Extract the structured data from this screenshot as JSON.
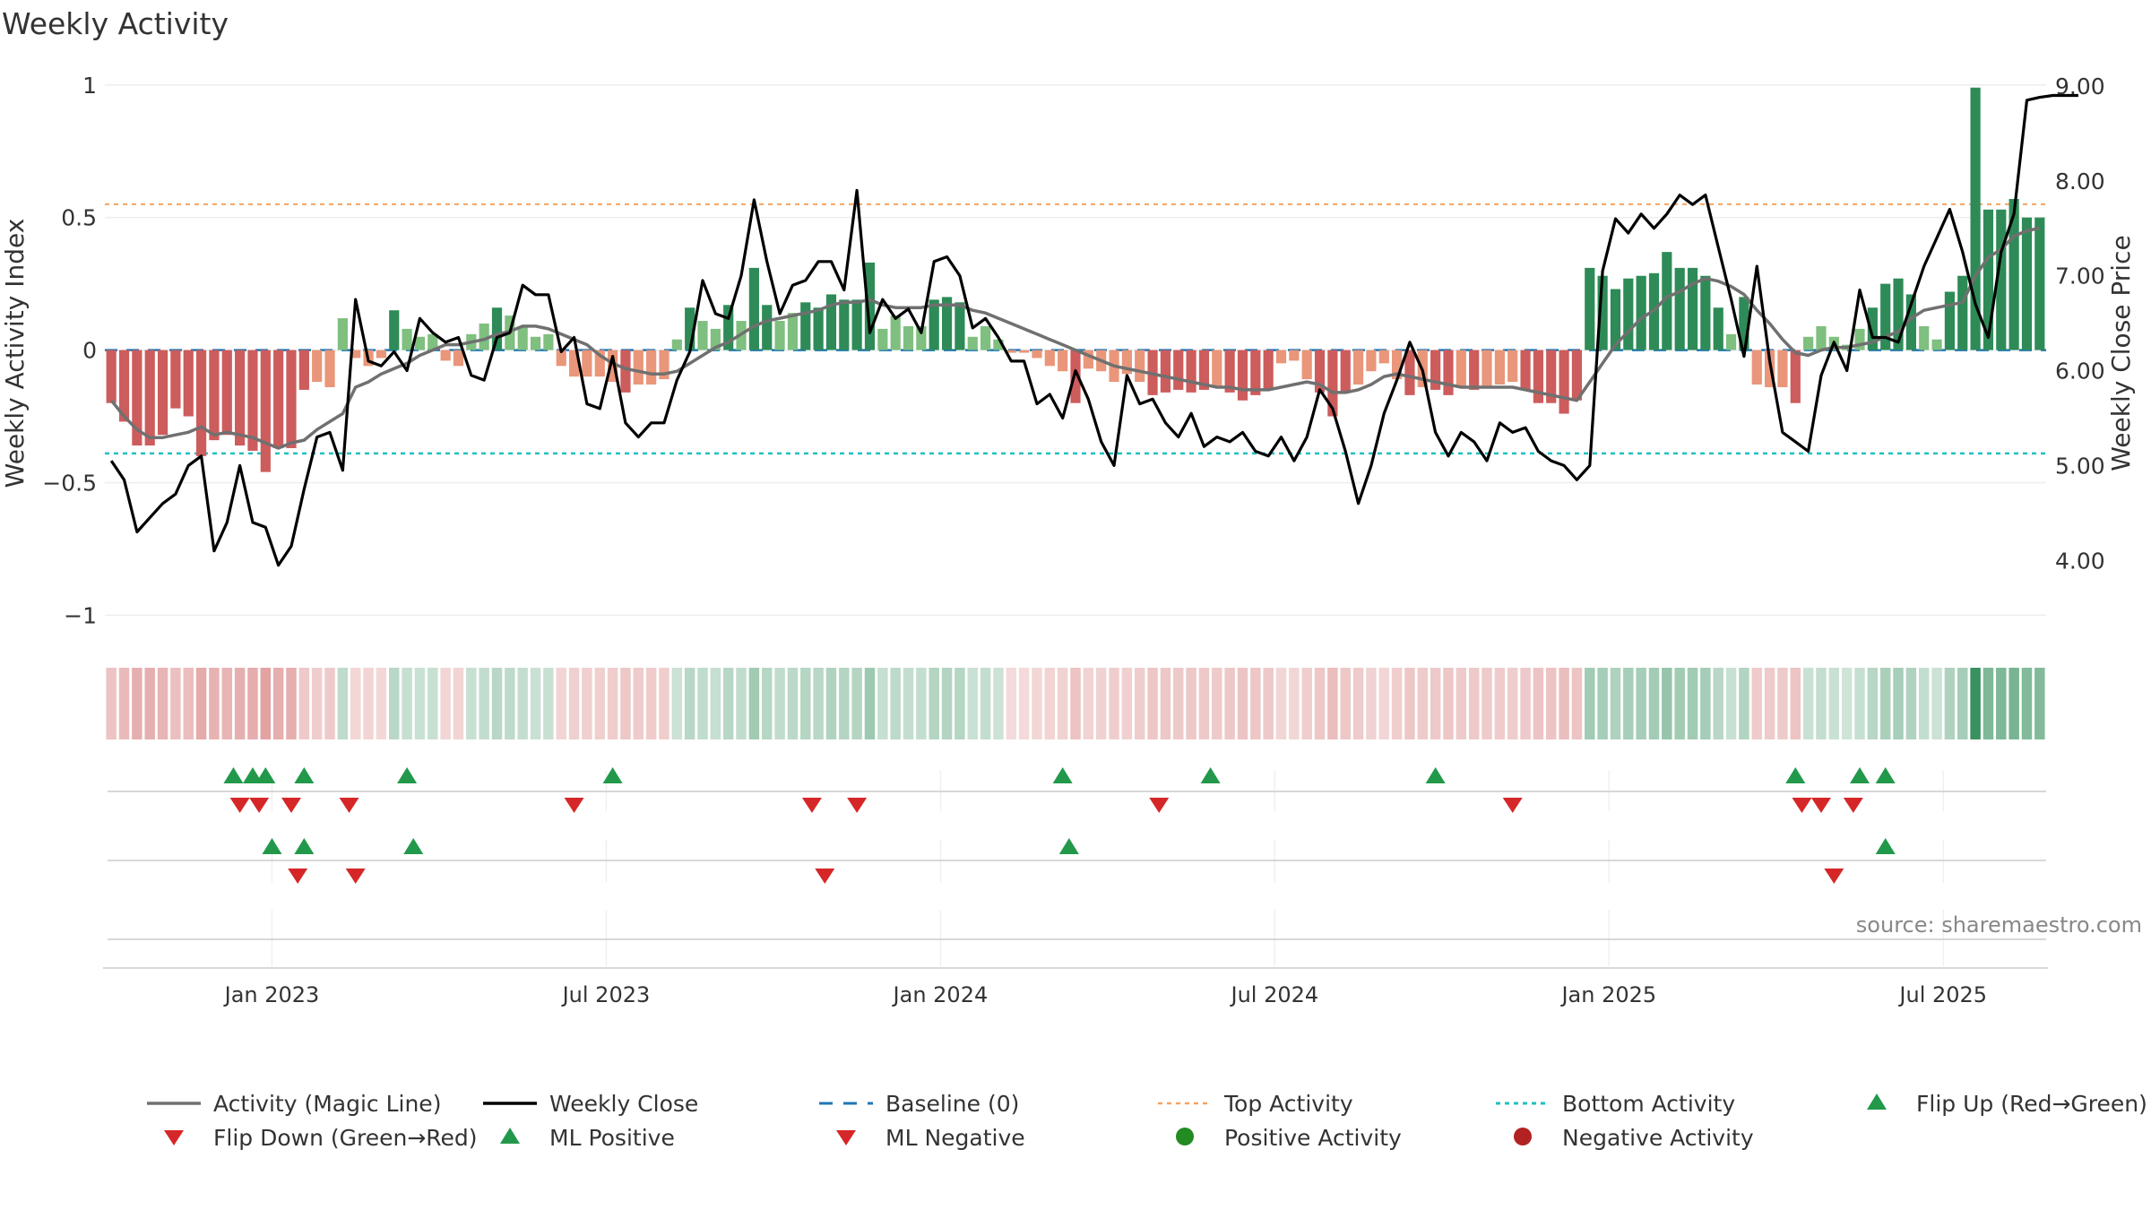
{
  "chart_data": {
    "type": "bar",
    "title": "Weekly Activity",
    "ylabel": "Weekly Activity Index",
    "y2label": "Weekly Close Price",
    "ylim": [
      -1.08,
      1.05
    ],
    "y2lim": [
      3.2,
      9.15
    ],
    "yticks": [
      {
        "value": 1,
        "label": "1"
      },
      {
        "value": 0.5,
        "label": "0.5"
      },
      {
        "value": 0,
        "label": "0"
      },
      {
        "value": -0.5,
        "label": "−0.5"
      },
      {
        "value": -1,
        "label": "−1"
      }
    ],
    "y2ticks": [
      {
        "value": 9,
        "label": "9.00"
      },
      {
        "value": 8,
        "label": "8.00"
      },
      {
        "value": 7,
        "label": "7.00"
      },
      {
        "value": 6,
        "label": "6.00"
      },
      {
        "value": 5,
        "label": "5.00"
      },
      {
        "value": 4,
        "label": "4.00"
      }
    ],
    "xticks": [
      {
        "week": 12.5,
        "label": "Jan 2023"
      },
      {
        "week": 38.5,
        "label": "Jul 2023"
      },
      {
        "week": 64.5,
        "label": "Jan 2024"
      },
      {
        "week": 90.5,
        "label": "Jul 2024"
      },
      {
        "week": 116.5,
        "label": "Jan 2025"
      },
      {
        "week": 142.5,
        "label": "Jul 2025"
      }
    ],
    "top_activity": 0.55,
    "bottom_activity": -0.39,
    "colors": {
      "pos_strong": "#2e8b57",
      "pos_light": "#7fbf7f",
      "neg_strong": "#cd5c5c",
      "neg_light": "#e9967a",
      "magic_line": "#707070",
      "close_line": "#000000",
      "baseline": "#1f77b4",
      "top_line": "#f4a460",
      "bottom_line": "#20c0c0",
      "flip_up": "#22994a",
      "flip_down": "#d62728",
      "positive_dot": "#228b22",
      "negative_dot": "#b22222"
    },
    "activity": [
      -0.2,
      -0.27,
      -0.36,
      -0.36,
      -0.32,
      -0.22,
      -0.25,
      -0.4,
      -0.34,
      -0.32,
      -0.36,
      -0.38,
      -0.46,
      -0.37,
      -0.37,
      -0.15,
      -0.12,
      -0.14,
      0.12,
      -0.03,
      -0.06,
      -0.03,
      0.15,
      0.08,
      0.05,
      0.06,
      -0.04,
      -0.06,
      0.06,
      0.1,
      0.16,
      0.13,
      0.09,
      0.05,
      0.06,
      -0.06,
      -0.1,
      -0.1,
      -0.1,
      -0.12,
      -0.16,
      -0.13,
      -0.13,
      -0.11,
      0.04,
      0.16,
      0.11,
      0.08,
      0.17,
      0.11,
      0.31,
      0.17,
      0.11,
      0.14,
      0.18,
      0.16,
      0.21,
      0.19,
      0.19,
      0.33,
      0.08,
      0.13,
      0.09,
      0.09,
      0.19,
      0.2,
      0.18,
      0.05,
      0.09,
      0.04,
      -0.01,
      -0.01,
      -0.03,
      -0.06,
      -0.08,
      -0.2,
      -0.07,
      -0.08,
      -0.12,
      -0.09,
      -0.12,
      -0.17,
      -0.16,
      -0.15,
      -0.16,
      -0.15,
      -0.14,
      -0.16,
      -0.19,
      -0.17,
      -0.15,
      -0.05,
      -0.04,
      -0.11,
      -0.16,
      -0.25,
      -0.16,
      -0.13,
      -0.08,
      -0.05,
      -0.11,
      -0.17,
      -0.14,
      -0.15,
      -0.17,
      -0.14,
      -0.15,
      -0.14,
      -0.13,
      -0.12,
      -0.15,
      -0.2,
      -0.2,
      -0.24,
      -0.19,
      0.31,
      0.28,
      0.23,
      0.27,
      0.28,
      0.29,
      0.37,
      0.31,
      0.31,
      0.28,
      0.16,
      0.06,
      0.2,
      -0.13,
      -0.14,
      -0.14,
      -0.2,
      0.05,
      0.09,
      0.05,
      0.02,
      0.08,
      0.16,
      0.25,
      0.27,
      0.21,
      0.09,
      0.04,
      0.22,
      0.28,
      0.99,
      0.53,
      0.53,
      0.57,
      0.5,
      0.5
    ],
    "magic_line": [
      -0.19,
      -0.25,
      -0.3,
      -0.33,
      -0.33,
      -0.32,
      -0.31,
      -0.29,
      -0.32,
      -0.31,
      -0.32,
      -0.33,
      -0.35,
      -0.37,
      -0.35,
      -0.34,
      -0.3,
      -0.27,
      -0.24,
      -0.14,
      -0.12,
      -0.09,
      -0.07,
      -0.05,
      -0.02,
      0.0,
      0.02,
      0.02,
      0.03,
      0.04,
      0.06,
      0.07,
      0.09,
      0.09,
      0.08,
      0.06,
      0.04,
      0.02,
      -0.02,
      -0.05,
      -0.07,
      -0.08,
      -0.09,
      -0.09,
      -0.08,
      -0.05,
      -0.02,
      0.01,
      0.03,
      0.06,
      0.09,
      0.11,
      0.12,
      0.13,
      0.14,
      0.15,
      0.17,
      0.18,
      0.18,
      0.19,
      0.17,
      0.16,
      0.16,
      0.16,
      0.17,
      0.17,
      0.17,
      0.15,
      0.14,
      0.12,
      0.1,
      0.08,
      0.06,
      0.04,
      0.02,
      0.0,
      -0.02,
      -0.04,
      -0.06,
      -0.07,
      -0.08,
      -0.09,
      -0.1,
      -0.11,
      -0.12,
      -0.13,
      -0.14,
      -0.14,
      -0.15,
      -0.15,
      -0.15,
      -0.14,
      -0.13,
      -0.12,
      -0.13,
      -0.16,
      -0.16,
      -0.15,
      -0.13,
      -0.1,
      -0.09,
      -0.1,
      -0.11,
      -0.12,
      -0.13,
      -0.14,
      -0.14,
      -0.14,
      -0.14,
      -0.14,
      -0.15,
      -0.16,
      -0.17,
      -0.18,
      -0.19,
      -0.12,
      -0.05,
      0.02,
      0.07,
      0.12,
      0.15,
      0.2,
      0.22,
      0.25,
      0.27,
      0.26,
      0.24,
      0.21,
      0.15,
      0.1,
      0.04,
      -0.01,
      -0.02,
      0.0,
      0.01,
      0.01,
      0.02,
      0.03,
      0.05,
      0.07,
      0.12,
      0.15,
      0.16,
      0.17,
      0.18,
      0.28,
      0.35,
      0.38,
      0.43,
      0.45,
      0.46
    ],
    "weekly_close": [
      5.05,
      4.85,
      4.3,
      4.45,
      4.6,
      4.7,
      5.0,
      5.1,
      4.1,
      4.4,
      5.0,
      4.4,
      4.35,
      3.95,
      4.15,
      4.75,
      5.3,
      5.35,
      4.95,
      6.75,
      6.1,
      6.05,
      6.2,
      6.0,
      6.55,
      6.4,
      6.3,
      6.35,
      5.95,
      5.9,
      6.35,
      6.4,
      6.9,
      6.8,
      6.8,
      6.2,
      6.35,
      5.65,
      5.6,
      6.15,
      5.45,
      5.3,
      5.45,
      5.45,
      5.9,
      6.2,
      6.95,
      6.6,
      6.55,
      7.0,
      7.8,
      7.15,
      6.6,
      6.9,
      6.95,
      7.15,
      7.15,
      6.85,
      7.9,
      6.4,
      6.75,
      6.55,
      6.65,
      6.4,
      7.15,
      7.2,
      7.0,
      6.45,
      6.55,
      6.35,
      6.1,
      6.1,
      5.65,
      5.75,
      5.5,
      6.0,
      5.7,
      5.25,
      5.0,
      5.95,
      5.65,
      5.7,
      5.45,
      5.3,
      5.55,
      5.2,
      5.3,
      5.25,
      5.35,
      5.15,
      5.1,
      5.3,
      5.05,
      5.3,
      5.8,
      5.6,
      5.15,
      4.6,
      5.0,
      5.55,
      5.9,
      6.3,
      6.0,
      5.35,
      5.1,
      5.35,
      5.25,
      5.05,
      5.45,
      5.35,
      5.4,
      5.15,
      5.05,
      5.0,
      4.85,
      5.0,
      7.05,
      7.6,
      7.45,
      7.65,
      7.5,
      7.65,
      7.85,
      7.75,
      7.85,
      7.3,
      6.75,
      6.15,
      7.1,
      6.1,
      5.35,
      5.25,
      5.15,
      5.95,
      6.3,
      6.0,
      6.85,
      6.35,
      6.35,
      6.3,
      6.7,
      7.1,
      7.4,
      7.7,
      7.25,
      6.7,
      6.35,
      7.25,
      7.65,
      8.85,
      8.88,
      8.9,
      8.9,
      8.9
    ],
    "flip_up": [
      9.5,
      11,
      12,
      15,
      23,
      39,
      74,
      85.5,
      103,
      131,
      136,
      138
    ],
    "flip_down": [
      10,
      11.5,
      14,
      18.5,
      36,
      54.5,
      58,
      81.5,
      109,
      131.5,
      133,
      135.5
    ],
    "ml_positive": [
      12.5,
      15,
      23.5,
      74.5,
      138
    ],
    "ml_negative": [
      14.5,
      19,
      55.5,
      134
    ],
    "source": "source: sharemaestro.com",
    "legend": [
      "Activity (Magic Line)",
      "Weekly Close",
      "Baseline (0)",
      "Top Activity",
      "Bottom Activity",
      "Flip Up (Red→Green)",
      "Flip Down (Green→Red)",
      "ML Positive",
      "ML Negative",
      "Positive Activity",
      "Negative Activity"
    ]
  }
}
